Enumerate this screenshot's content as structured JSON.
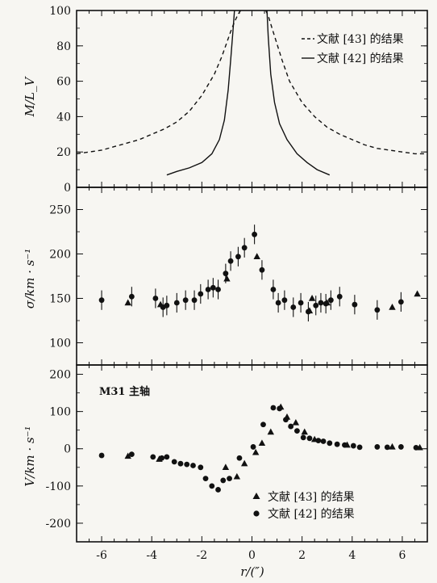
{
  "chart_data": [
    {
      "type": "line",
      "panel": "M/L",
      "ylabel": "M/L_V",
      "ylim": [
        0,
        100
      ],
      "yticks": [
        "0",
        "20",
        "40",
        "60",
        "80",
        "100"
      ],
      "xlim": [
        -7,
        7
      ],
      "legend": {
        "placement": "top-right",
        "entries": [
          {
            "marker": "--",
            "label": "文献 [43] 的结果"
          },
          {
            "marker": "—",
            "label": "文献 [42] 的结果"
          }
        ]
      },
      "series": [
        {
          "name": "文献 [43] 的结果",
          "style": "dashed",
          "x": [
            -7.0,
            -6.5,
            -6.0,
            -5.5,
            -5.0,
            -4.5,
            -4.0,
            -3.5,
            -3.0,
            -2.5,
            -2.0,
            -1.5,
            -1.2,
            -1.0,
            -0.8,
            -0.65,
            -0.55,
            -0.45,
            0.55,
            0.65,
            0.8,
            1.0,
            1.2,
            1.5,
            2.0,
            2.5,
            3.0,
            3.5,
            4.0,
            4.5,
            5.0,
            5.5,
            6.0,
            6.5,
            7.0
          ],
          "y": [
            19,
            20,
            21,
            23,
            25,
            27,
            30,
            33,
            37,
            43,
            52,
            64,
            74,
            82,
            90,
            95,
            98,
            100,
            100,
            97,
            90,
            81,
            72,
            60,
            48,
            40,
            34,
            30,
            27,
            24,
            22,
            21,
            20,
            19,
            19
          ]
        },
        {
          "name": "文献 [42] 的结果",
          "style": "solid",
          "x": [
            -3.4,
            -3.0,
            -2.5,
            -2.0,
            -1.6,
            -1.3,
            -1.1,
            -0.95,
            -0.85,
            -0.75,
            -0.7,
            0.6,
            0.65,
            0.75,
            0.9,
            1.1,
            1.4,
            1.8,
            2.2,
            2.6,
            3.1
          ],
          "y": [
            7,
            9,
            11,
            14,
            19,
            27,
            38,
            55,
            72,
            90,
            100,
            100,
            85,
            64,
            48,
            36,
            27,
            19,
            14,
            10,
            7
          ]
        }
      ]
    },
    {
      "type": "scatter",
      "panel": "sigma",
      "ylabel": "σ/km · s⁻¹",
      "ylim": [
        75,
        275
      ],
      "yticks": [
        "100",
        "150",
        "200",
        "250"
      ],
      "xlim": [
        -7,
        7
      ],
      "series": [
        {
          "name": "文献 [42] 的结果",
          "marker": "circle",
          "x": [
            -6.0,
            -4.8,
            -3.85,
            -3.55,
            -3.4,
            -3.0,
            -2.65,
            -2.3,
            -2.05,
            -1.75,
            -1.55,
            -1.35,
            -1.05,
            -0.85,
            -0.55,
            -0.3,
            0.1,
            0.4,
            0.85,
            1.05,
            1.3,
            1.65,
            1.95,
            2.25,
            2.55,
            2.75,
            2.95,
            3.15,
            3.5,
            4.1,
            5.0,
            5.95
          ],
          "y": [
            148,
            152,
            150,
            140,
            142,
            145,
            148,
            148,
            155,
            160,
            162,
            160,
            178,
            192,
            197,
            207,
            222,
            182,
            160,
            145,
            148,
            140,
            145,
            135,
            142,
            145,
            144,
            148,
            152,
            143,
            137,
            146
          ],
          "err": [
            11,
            11,
            11,
            11,
            11,
            11,
            11,
            11,
            11,
            11,
            11,
            11,
            11,
            11,
            11,
            11,
            11,
            11,
            11,
            11,
            11,
            11,
            11,
            11,
            11,
            11,
            11,
            11,
            11,
            11,
            11,
            11
          ]
        },
        {
          "name": "文献 [43] 的结果",
          "marker": "triangle",
          "x": [
            -4.95,
            -3.65,
            -1.0,
            0.2,
            2.3,
            2.4,
            3.0,
            5.6,
            6.6
          ],
          "y": [
            145,
            143,
            172,
            197,
            136,
            150,
            145,
            140,
            155
          ]
        }
      ]
    },
    {
      "type": "scatter",
      "panel": "V",
      "ylabel": "V/km · s⁻¹",
      "ylim": [
        -250,
        225
      ],
      "yticks": [
        "-200",
        "-100",
        "0",
        "100",
        "200"
      ],
      "xticks": [
        "-6",
        "-4",
        "-2",
        "0",
        "2",
        "4",
        "6"
      ],
      "xlabel": "r/(″)",
      "xlim": [
        -7,
        7
      ],
      "annotation": "M31 主轴",
      "legend": {
        "placement": "bottom-right",
        "entries": [
          {
            "marker": "triangle",
            "label": "文献 [43] 的结果"
          },
          {
            "marker": "circle",
            "label": "文献 [42] 的结果"
          }
        ]
      },
      "series": [
        {
          "name": "文献 [42] 的结果",
          "marker": "circle",
          "x": [
            -6.0,
            -4.8,
            -3.95,
            -3.6,
            -3.4,
            -3.1,
            -2.85,
            -2.6,
            -2.35,
            -2.05,
            -1.85,
            -1.6,
            -1.35,
            -1.15,
            -0.9,
            -0.5,
            0.05,
            0.45,
            0.85,
            1.1,
            1.35,
            1.55,
            1.8,
            2.05,
            2.3,
            2.65,
            2.85,
            3.1,
            3.4,
            3.7,
            4.05,
            4.3,
            5.0,
            5.4,
            5.95,
            6.55
          ],
          "y": [
            -18,
            -15,
            -22,
            -25,
            -22,
            -35,
            -40,
            -42,
            -45,
            -50,
            -80,
            -100,
            -110,
            -85,
            -80,
            -25,
            5,
            65,
            110,
            108,
            78,
            60,
            48,
            30,
            28,
            22,
            20,
            15,
            12,
            10,
            8,
            4,
            5,
            4,
            5,
            3
          ]
        },
        {
          "name": "文献 [43] 的结果",
          "marker": "triangle",
          "x": [
            -4.95,
            -3.7,
            -1.05,
            -0.6,
            -0.3,
            0.15,
            0.4,
            0.75,
            1.15,
            1.4,
            1.75,
            2.1,
            2.5,
            3.8,
            5.6,
            6.7
          ],
          "y": [
            -20,
            -28,
            -50,
            -75,
            -40,
            -10,
            15,
            45,
            112,
            85,
            70,
            45,
            25,
            10,
            5,
            3
          ]
        }
      ]
    }
  ]
}
